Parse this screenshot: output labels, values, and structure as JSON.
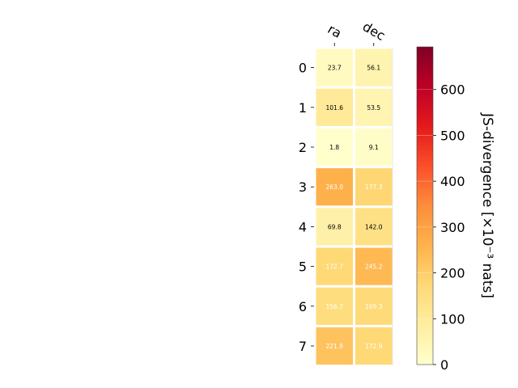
{
  "chart_data": {
    "type": "heatmap",
    "columns": [
      "ra",
      "dec"
    ],
    "rows": [
      "0",
      "1",
      "2",
      "3",
      "4",
      "5",
      "6",
      "7"
    ],
    "values": [
      [
        23.7,
        56.1
      ],
      [
        101.6,
        53.5
      ],
      [
        1.8,
        9.1
      ],
      [
        263.0,
        177.3
      ],
      [
        69.8,
        142.0
      ],
      [
        172.7,
        245.2
      ],
      [
        156.7,
        169.3
      ],
      [
        221.8,
        172.9
      ]
    ],
    "cell_labels": [
      [
        "23.7",
        "56.1"
      ],
      [
        "101.6",
        "53.5"
      ],
      [
        "1.8",
        "9.1"
      ],
      [
        "263.0",
        "177.3"
      ],
      [
        "69.8",
        "142.0"
      ],
      [
        "172.7",
        "245.2"
      ],
      [
        "156.7",
        "169.3"
      ],
      [
        "221.8",
        "172.9"
      ]
    ],
    "colorbar": {
      "label": "JS-divergence [×10⁻³ nats]",
      "range": [
        0,
        693
      ],
      "ticks": [
        0,
        100,
        200,
        300,
        400,
        500,
        600
      ],
      "tick_labels": [
        "0",
        "100",
        "200",
        "300",
        "400",
        "500",
        "600"
      ],
      "colormap": "YlOrRd"
    },
    "colors": {
      "cell_border": "#ffffff",
      "text_dark": "#000000",
      "text_light": "#ffffff",
      "cmap_stops": [
        "#ffffcc",
        "#ffeda0",
        "#fed976",
        "#feb24c",
        "#fd8d3c",
        "#fc4e2a",
        "#e31a1c",
        "#bd0026",
        "#800026"
      ]
    }
  }
}
